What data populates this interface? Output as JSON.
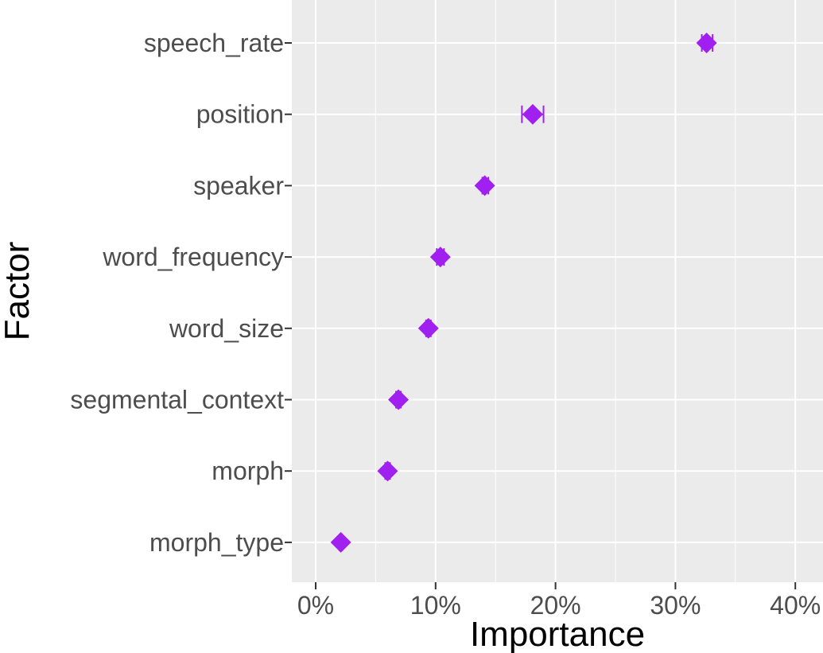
{
  "chart_data": {
    "type": "scatter",
    "mark": "diamond-with-errorbar",
    "xlabel": "Importance",
    "ylabel": "Factor",
    "xlim": [
      -0.02,
      0.42
    ],
    "x_ticks": [
      0,
      0.1,
      0.2,
      0.3,
      0.4
    ],
    "x_tick_labels": [
      "0%",
      "10%",
      "20%",
      "30%",
      "40%"
    ],
    "x_tick_format": "percent",
    "grid": true,
    "color": "#a020f0",
    "categories": [
      "speech_rate",
      "position",
      "speaker",
      "word_frequency",
      "word_size",
      "segmental_context",
      "morph",
      "morph_type"
    ],
    "values": [
      0.326,
      0.181,
      0.141,
      0.104,
      0.094,
      0.069,
      0.06,
      0.021
    ],
    "err_low": [
      0.322,
      0.172,
      0.139,
      0.101,
      0.092,
      0.067,
      0.058,
      0.02
    ],
    "err_high": [
      0.331,
      0.19,
      0.144,
      0.107,
      0.096,
      0.071,
      0.062,
      0.022
    ]
  }
}
